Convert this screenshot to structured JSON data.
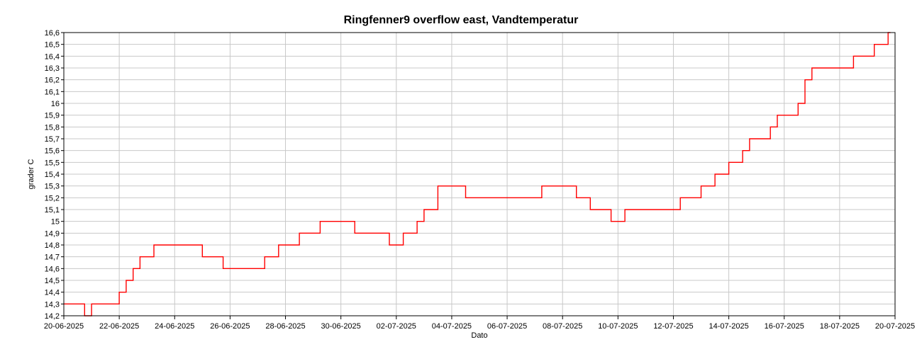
{
  "chart_data": {
    "type": "line",
    "title": "Ringfenner9 overflow east, Vandtemperatur",
    "xlabel": "Dato",
    "ylabel": "grader C",
    "xlim": [
      "2025-06-20",
      "2025-07-20"
    ],
    "ylim": [
      14.2,
      16.6
    ],
    "x_ticks": [
      "20-06-2025",
      "22-06-2025",
      "24-06-2025",
      "26-06-2025",
      "28-06-2025",
      "30-06-2025",
      "02-07-2025",
      "04-07-2025",
      "06-07-2025",
      "08-07-2025",
      "10-07-2025",
      "12-07-2025",
      "14-07-2025",
      "16-07-2025",
      "18-07-2025",
      "20-07-2025"
    ],
    "y_ticks": [
      "14,2",
      "14,3",
      "14,4",
      "14,5",
      "14,6",
      "14,7",
      "14,8",
      "14,9",
      "15",
      "15,1",
      "15,2",
      "15,3",
      "15,4",
      "15,5",
      "15,6",
      "15,7",
      "15,8",
      "15,9",
      "16",
      "16,1",
      "16,2",
      "16,3",
      "16,4",
      "16,5",
      "16,6"
    ],
    "grid": true,
    "legend": "none",
    "colors": {
      "line": "#ff0000",
      "grid": "#c8c8c8",
      "axis": "#000000"
    },
    "series": [
      {
        "x": [
          "2025-06-20 00:00",
          "2025-06-20 18:00",
          "2025-06-20 18:00",
          "2025-06-21 00:00",
          "2025-06-21 00:00",
          "2025-06-22 00:00",
          "2025-06-22 00:00",
          "2025-06-22 06:00",
          "2025-06-22 06:00",
          "2025-06-22 12:00",
          "2025-06-22 12:00",
          "2025-06-22 18:00",
          "2025-06-22 18:00",
          "2025-06-23 06:00",
          "2025-06-23 06:00",
          "2025-06-23 12:00",
          "2025-06-23 12:00",
          "2025-06-23 18:00",
          "2025-06-23 18:00",
          "2025-06-25 00:00",
          "2025-06-25 00:00",
          "2025-06-25 18:00",
          "2025-06-25 18:00",
          "2025-06-27 06:00",
          "2025-06-27 06:00",
          "2025-06-27 18:00",
          "2025-06-27 18:00",
          "2025-06-28 12:00",
          "2025-06-28 12:00",
          "2025-06-29 06:00",
          "2025-06-29 06:00",
          "2025-06-29 18:00",
          "2025-06-29 18:00",
          "2025-06-30 12:00",
          "2025-06-30 12:00",
          "2025-07-01 18:00",
          "2025-07-01 18:00",
          "2025-07-02 06:00",
          "2025-07-02 06:00",
          "2025-07-02 18:00",
          "2025-07-02 18:00",
          "2025-07-03 00:00",
          "2025-07-03 00:00",
          "2025-07-03 12:00",
          "2025-07-03 12:00",
          "2025-07-04 12:00",
          "2025-07-04 12:00",
          "2025-07-05 12:00",
          "2025-07-05 12:00",
          "2025-07-06 12:00",
          "2025-07-06 12:00",
          "2025-07-07 06:00",
          "2025-07-07 06:00",
          "2025-07-08 12:00",
          "2025-07-08 12:00",
          "2025-07-09 00:00",
          "2025-07-09 00:00",
          "2025-07-09 18:00",
          "2025-07-09 18:00",
          "2025-07-10 06:00",
          "2025-07-10 06:00",
          "2025-07-11 00:00",
          "2025-07-11 00:00",
          "2025-07-12 06:00",
          "2025-07-12 06:00",
          "2025-07-13 00:00",
          "2025-07-13 00:00",
          "2025-07-13 12:00",
          "2025-07-13 12:00",
          "2025-07-14 00:00",
          "2025-07-14 00:00",
          "2025-07-14 12:00",
          "2025-07-14 12:00",
          "2025-07-14 18:00",
          "2025-07-14 18:00",
          "2025-07-15 12:00",
          "2025-07-15 12:00",
          "2025-07-15 18:00",
          "2025-07-15 18:00",
          "2025-07-16 12:00",
          "2025-07-16 12:00",
          "2025-07-16 18:00",
          "2025-07-16 18:00",
          "2025-07-17 00:00",
          "2025-07-17 00:00",
          "2025-07-17 06:00",
          "2025-07-17 06:00",
          "2025-07-18 12:00",
          "2025-07-18 12:00",
          "2025-07-19 06:00",
          "2025-07-19 06:00",
          "2025-07-19 18:00",
          "2025-07-19 18:00",
          "2025-07-19 20:00"
        ],
        "values": [
          14.3,
          14.3,
          14.2,
          14.2,
          14.3,
          14.3,
          14.4,
          14.4,
          14.5,
          14.5,
          14.6,
          14.6,
          14.7,
          14.7,
          14.8,
          14.8,
          14.8,
          14.8,
          14.8,
          14.8,
          14.7,
          14.7,
          14.6,
          14.6,
          14.7,
          14.7,
          14.8,
          14.8,
          14.9,
          14.9,
          15.0,
          15.0,
          15.0,
          15.0,
          14.9,
          14.9,
          14.8,
          14.8,
          14.9,
          14.9,
          15.0,
          15.0,
          15.1,
          15.1,
          15.3,
          15.3,
          15.2,
          15.2,
          15.2,
          15.2,
          15.2,
          15.2,
          15.3,
          15.3,
          15.2,
          15.2,
          15.1,
          15.1,
          15.0,
          15.0,
          15.1,
          15.1,
          15.1,
          15.1,
          15.2,
          15.2,
          15.3,
          15.3,
          15.4,
          15.4,
          15.5,
          15.5,
          15.6,
          15.6,
          15.7,
          15.7,
          15.8,
          15.8,
          15.9,
          15.9,
          16.0,
          16.0,
          16.2,
          16.2,
          16.3,
          16.3,
          16.3,
          16.3,
          16.4,
          16.4,
          16.5,
          16.5,
          16.6,
          16.6
        ]
      }
    ]
  }
}
